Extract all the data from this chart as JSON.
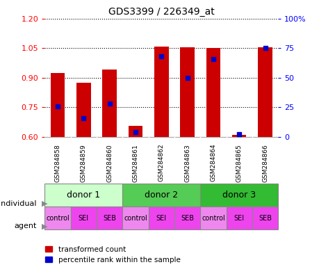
{
  "title": "GDS3399 / 226349_at",
  "samples": [
    "GSM284858",
    "GSM284859",
    "GSM284860",
    "GSM284861",
    "GSM284862",
    "GSM284863",
    "GSM284864",
    "GSM284865",
    "GSM284866"
  ],
  "transformed_count": [
    0.925,
    0.875,
    0.94,
    0.655,
    1.06,
    1.055,
    1.05,
    0.61,
    1.055
  ],
  "percentile_rank": [
    26,
    16,
    28,
    4,
    68,
    50,
    66,
    2,
    75
  ],
  "ylim_left": [
    0.6,
    1.2
  ],
  "ylim_right": [
    0,
    100
  ],
  "yticks_left": [
    0.6,
    0.75,
    0.9,
    1.05,
    1.2
  ],
  "yticks_right": [
    0,
    25,
    50,
    75,
    100
  ],
  "bar_color": "#cc0000",
  "dot_color": "#0000cc",
  "bar_width": 0.55,
  "donors": [
    {
      "label": "donor 1",
      "start": 0,
      "end": 3,
      "color": "#ccffcc"
    },
    {
      "label": "donor 2",
      "start": 3,
      "end": 6,
      "color": "#55cc55"
    },
    {
      "label": "donor 3",
      "start": 6,
      "end": 9,
      "color": "#33bb33"
    }
  ],
  "agents": [
    "control",
    "SEI",
    "SEB",
    "control",
    "SEI",
    "SEB",
    "control",
    "SEI",
    "SEB"
  ],
  "agent_colors": [
    "#ee88ee",
    "#ee44ee",
    "#ee44ee",
    "#ee88ee",
    "#ee44ee",
    "#ee44ee",
    "#ee88ee",
    "#ee44ee",
    "#ee44ee"
  ],
  "legend_bar_label": "transformed count",
  "legend_dot_label": "percentile rank within the sample",
  "individual_label": "individual",
  "agent_label": "agent",
  "tick_bg_color": "#cccccc"
}
